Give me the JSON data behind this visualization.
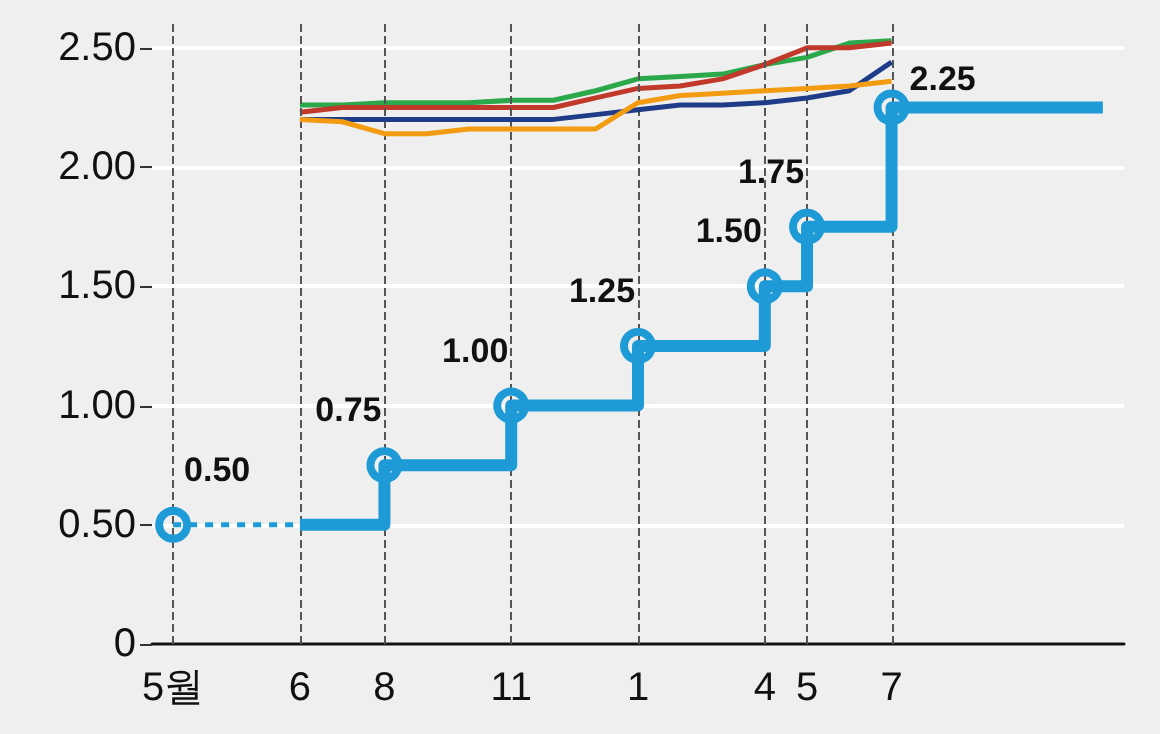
{
  "chart_data": {
    "type": "line",
    "categories": [
      "5월",
      null,
      null,
      "6",
      null,
      "8",
      null,
      null,
      "11",
      null,
      null,
      "1",
      null,
      null,
      "4",
      "5",
      null,
      "7",
      null,
      null,
      null,
      null,
      null
    ],
    "ylim": [
      0,
      2.6
    ],
    "yticks": [
      0,
      {
        "value": 0.5,
        "label": "0.50"
      },
      {
        "value": 1,
        "label": "1.00"
      },
      {
        "value": 1.5,
        "label": "1.50"
      },
      {
        "value": 2,
        "label": "2.00"
      },
      {
        "value": 2.5,
        "label": "2.50"
      }
    ],
    "grid": "y",
    "ref_lines": [
      {
        "axis": "x",
        "value": "5월",
        "line_style": "dashed",
        "color": "#555555"
      },
      {
        "axis": "x",
        "value": "6",
        "line_style": "dashed",
        "color": "#555555"
      },
      {
        "axis": "x",
        "value": "8",
        "line_style": "dashed",
        "color": "#555555"
      },
      {
        "axis": "x",
        "value": "11",
        "line_style": "dashed",
        "color": "#555555"
      },
      {
        "axis": "x",
        "value": "1",
        "line_style": "dashed",
        "color": "#555555"
      },
      {
        "axis": "x",
        "value": "4",
        "line_style": "dashed",
        "color": "#555555"
      },
      {
        "axis": "x",
        "value": "5",
        "line_style": "dashed",
        "color": "#555555"
      },
      {
        "axis": "x",
        "value": "7",
        "line_style": "dashed",
        "color": "#555555"
      }
    ],
    "series": [
      {
        "color": "#2aa84a",
        "marker": "none",
        "values": [
          null,
          null,
          null,
          2.26,
          2.26,
          2.27,
          2.27,
          2.27,
          2.28,
          2.28,
          2.32,
          2.37,
          2.38,
          2.39,
          2.43,
          2.46,
          2.52,
          2.53,
          null,
          null,
          null,
          null,
          null
        ]
      },
      {
        "color": "#c0392b",
        "marker": "none",
        "values": [
          null,
          null,
          null,
          2.23,
          2.25,
          2.25,
          2.25,
          2.25,
          2.25,
          2.25,
          2.29,
          2.33,
          2.34,
          2.37,
          2.43,
          2.5,
          2.5,
          2.52,
          null,
          null,
          null,
          null,
          null
        ]
      },
      {
        "color": "#1f3c88",
        "marker": "none",
        "values": [
          null,
          null,
          null,
          2.2,
          2.2,
          2.2,
          2.2,
          2.2,
          2.2,
          2.2,
          2.22,
          2.24,
          2.26,
          2.26,
          2.27,
          2.29,
          2.32,
          2.44,
          null,
          null,
          null,
          null,
          null
        ]
      },
      {
        "color": "#f39c12",
        "marker": "none",
        "values": [
          null,
          null,
          null,
          2.2,
          2.19,
          2.14,
          2.14,
          2.16,
          2.16,
          2.16,
          2.16,
          2.27,
          2.3,
          2.31,
          2.32,
          2.33,
          2.34,
          2.36,
          null,
          null,
          null,
          null,
          null
        ]
      },
      {
        "color": "#1e9ad6",
        "marker": "none",
        "line_style": "dotted",
        "values": [
          0.5,
          0.5,
          0.5,
          0.5,
          null,
          null,
          null,
          null,
          null,
          null,
          null,
          null,
          null,
          null,
          null,
          null,
          null,
          null,
          null,
          null,
          null,
          null,
          null
        ]
      },
      {
        "type": "step",
        "color": "#1e9ad6",
        "marker": "none",
        "values": [
          null,
          null,
          null,
          0.5,
          0.5,
          0.75,
          0.75,
          0.75,
          1,
          1,
          1,
          1.25,
          1.25,
          1.25,
          1.5,
          1.75,
          1.75,
          2.25,
          2.25,
          2.25,
          2.25,
          2.25,
          2.25
        ]
      },
      {
        "type": "scatter",
        "color": "#1e9ad6",
        "marker": "circle",
        "values": [
          0.5,
          null,
          null,
          null,
          null,
          0.75,
          null,
          null,
          1,
          null,
          null,
          1.25,
          null,
          null,
          1.5,
          1.75,
          null,
          2.25,
          null,
          null,
          null,
          null,
          null
        ],
        "value_labels": [
          "0.50",
          null,
          null,
          null,
          null,
          "0.75",
          null,
          null,
          "1.00",
          null,
          null,
          "1.25",
          null,
          null,
          "1.50",
          "1.75",
          null,
          "2.25",
          null,
          null,
          null,
          null,
          null
        ]
      }
    ]
  }
}
